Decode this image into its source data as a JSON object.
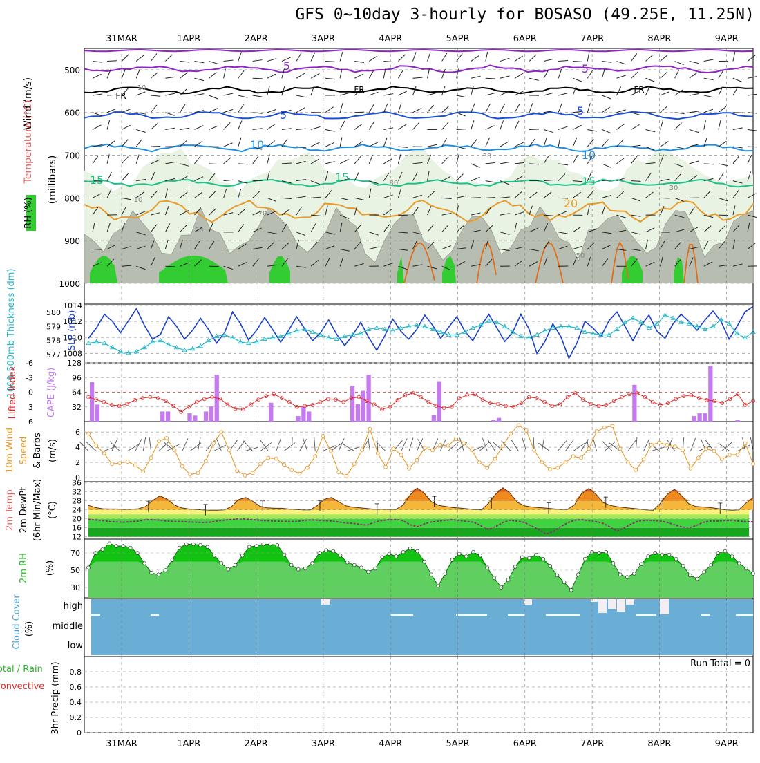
{
  "title": "GFS 0~10day 3-hourly for BOSASO (49.25E, 11.25N)",
  "date_labels": [
    "31MAR",
    "1APR",
    "2APR",
    "3APR",
    "4APR",
    "5APR",
    "6APR",
    "7APR",
    "8APR",
    "9APR"
  ],
  "colors": {
    "rh_green": "#33cc33",
    "rh_gray": "#b7bdb0",
    "rh_pale": "#e8f3e3",
    "slp": "#1a3fc7",
    "thickness": "#22b8c8",
    "lifted": "#e02828",
    "cape": "#c57af0",
    "wind10": "#e89a2a",
    "cloud": "#6aaed6",
    "rh2m": "#12c312"
  },
  "chart_data": [
    {
      "type": "contour",
      "panel": "upper-air",
      "ylabel": "(millibars)",
      "side_labels": [
        "Wind (m/s)",
        "Temperature (°C)",
        "RH (%)"
      ],
      "yticks": [
        500,
        600,
        700,
        800,
        900,
        1000
      ],
      "ylim": [
        1000,
        450
      ],
      "isotherm_labels": [
        "5",
        "5",
        "FR",
        "FR",
        "FR",
        "5",
        "5",
        "10",
        "10",
        "15",
        "15",
        "15",
        "20"
      ],
      "rh_labels": [
        "10",
        "30",
        "30",
        "30",
        "50",
        "50",
        "70",
        "10"
      ],
      "isotherms": [
        {
          "name": "-5",
          "color": "#8e24c2",
          "level": 498
        },
        {
          "name": "FR",
          "color": "#000000",
          "level": 548
        },
        {
          "name": "5",
          "color": "#1d4fd6",
          "level": 607
        },
        {
          "name": "10",
          "color": "#1d8fe0",
          "level": 683
        },
        {
          "name": "15",
          "color": "#1ec08a",
          "level": 765
        },
        {
          "name": "20",
          "color": "#e89a2a",
          "level": 830
        }
      ]
    },
    {
      "type": "line",
      "panel": "thickness-slp",
      "ylabel_left": "1000-500mb Thickness (dm)",
      "ylabel_right": "SLP (mb)",
      "yticks_left": [
        577,
        578,
        579,
        580
      ],
      "yticks_right": [
        1008,
        1010,
        1012,
        1014
      ],
      "series": [
        {
          "name": "SLP (mb)",
          "values": [
            1009.9,
            1011.2,
            1012.9,
            1012.0,
            1010.6,
            1012.1,
            1013.6,
            1011.5,
            1009.8,
            1010.4,
            1012.6,
            1011.4,
            1009.8,
            1010.9,
            1012.4,
            1011.0,
            1009.3,
            1010.6,
            1013.2,
            1011.7,
            1009.7,
            1010.9,
            1012.5,
            1011.0,
            1009.4,
            1010.9,
            1012.6,
            1011.1,
            1009.6,
            1010.6,
            1012.2,
            1010.4,
            1009.0,
            1010.3,
            1011.9,
            1010.0,
            1008.4,
            1010.2,
            1012.3,
            1010.8,
            1009.8,
            1011.0,
            1012.8,
            1011.5,
            1009.9,
            1011.3,
            1012.6,
            1010.8,
            1009.6,
            1011.4,
            1012.9,
            1011.2,
            1009.5,
            1010.7,
            1012.9,
            1011.1,
            1008.0,
            1009.5,
            1011.7,
            1010.1,
            1007.4,
            1009.3,
            1012.0,
            1011.2,
            1010.1,
            1012.1,
            1013.2,
            1011.4,
            1009.6,
            1011.5,
            1012.8,
            1010.8,
            1009.9,
            1011.7,
            1012.9,
            1012.0,
            1010.9,
            1012.2,
            1013.3,
            1012.0,
            1009.8,
            1011.4,
            1013.2,
            1013.9
          ]
        },
        {
          "name": "1000-500mb Thickness (dm)",
          "values": [
            577.8,
            577.9,
            577.8,
            577.5,
            577.2,
            577.1,
            577.2,
            577.5,
            577.9,
            578.0,
            577.7,
            577.5,
            577.3,
            577.4,
            577.6,
            578.0,
            578.3,
            578.4,
            578.2,
            577.9,
            577.8,
            577.9,
            578.1,
            578.2,
            578.3,
            578.5,
            578.7,
            578.8,
            578.6,
            578.4,
            578.2,
            578.1,
            578.3,
            578.4,
            578.5,
            578.8,
            578.9,
            578.8,
            578.7,
            578.9,
            579.0,
            579.1,
            579.0,
            578.8,
            578.6,
            578.4,
            578.4,
            578.6,
            578.9,
            579.1,
            579.4,
            579.3,
            579.0,
            578.6,
            578.3,
            578.2,
            578.4,
            578.7,
            578.9,
            579.0,
            579.0,
            578.9,
            578.6,
            578.5,
            578.4,
            578.4,
            578.8,
            579.3,
            579.6,
            579.3,
            578.9,
            579.2,
            579.8,
            579.6,
            579.3,
            579.2,
            579.0,
            578.8,
            579.0,
            579.5,
            579.2,
            578.5,
            578.2,
            578.6
          ]
        }
      ]
    },
    {
      "type": "bar",
      "panel": "cape-lifted-index",
      "ylabel_left": "Lifted Index",
      "ylabel_right": "CAPE (J/kg)",
      "yticks_left": [
        -6,
        -3,
        0,
        3,
        6
      ],
      "yticks_right": [
        32,
        64,
        96,
        128
      ],
      "series": [
        {
          "name": "CAPE (J/kg)",
          "values": [
            86,
            37,
            0,
            0,
            0,
            0,
            0,
            0,
            0,
            0,
            0,
            0,
            0,
            22,
            22,
            0,
            0,
            0,
            18,
            13,
            0,
            22,
            33,
            102,
            0,
            0,
            0,
            0,
            0,
            0,
            0,
            0,
            0,
            41,
            0,
            0,
            0,
            0,
            12,
            33,
            22,
            0,
            0,
            0,
            0,
            0,
            0,
            0,
            78,
            38,
            67,
            102,
            0,
            0,
            0,
            0,
            0,
            0,
            0,
            0,
            0,
            0,
            0,
            14,
            88,
            0,
            0,
            0,
            0,
            0,
            0,
            0,
            0,
            0,
            3,
            8,
            0,
            0,
            0,
            0,
            0,
            0,
            0,
            0,
            0,
            0,
            0,
            0,
            0,
            0,
            0,
            0,
            0,
            0,
            0,
            0,
            0,
            0,
            0,
            0,
            80,
            0,
            0,
            0,
            0,
            0,
            0,
            0,
            0,
            0,
            0,
            12,
            18,
            18,
            121,
            0,
            0,
            0,
            0,
            3,
            0,
            0
          ]
        },
        {
          "name": "Lifted Index",
          "values": [
            1.0,
            1.5,
            2.0,
            2.6,
            2.8,
            2.4,
            1.6,
            1.2,
            1.0,
            1.2,
            1.8,
            2.8,
            4.0,
            3.0,
            2.0,
            1.4,
            1.0,
            1.3,
            2.5,
            3.4,
            3.5,
            2.5,
            1.5,
            0.8,
            0.4,
            1.2,
            2.0,
            3.0,
            2.8,
            2.6,
            2.0,
            1.4,
            1.5,
            2.0,
            1.2,
            1.0,
            1.8,
            2.5,
            3.5,
            3.0,
            1.6,
            0.6,
            0.2,
            1.0,
            2.0,
            2.8,
            3.2,
            3.0,
            1.2,
            0.6,
            0.4,
            1.5,
            2.2,
            2.4,
            2.8,
            3.0,
            2.2,
            1.0,
            1.2,
            2.0,
            2.8,
            2.5,
            1.0,
            0.2,
            1.5,
            2.4,
            2.8,
            2.6,
            1.8,
            1.0,
            0.4,
            0.2,
            1.0,
            2.0,
            2.6,
            2.2,
            1.4,
            0.8,
            0.6,
            1.2,
            1.6,
            1.8,
            2.2,
            1.4,
            0.4,
            2.6,
            1.8
          ]
        }
      ]
    },
    {
      "type": "line",
      "panel": "wind10m",
      "ylabel": "10m Wind Speed & Barbs (m/s)",
      "yticks": [
        0,
        2,
        4,
        6
      ],
      "series": [
        {
          "name": "10m Wind Speed (m/s)",
          "values": [
            5.8,
            4.2,
            3.2,
            1.8,
            1.9,
            2.1,
            1.6,
            0.8,
            2.6,
            4.8,
            5.2,
            3.6,
            1.5,
            0.4,
            0.6,
            2.2,
            4.5,
            6.0,
            3.6,
            0.9,
            0.3,
            0.6,
            1.8,
            2.6,
            2.5,
            1.7,
            1.0,
            0.5,
            1.3,
            2.8,
            5.5,
            3.5,
            0.7,
            0.2,
            1.8,
            3.6,
            6.4,
            3.2,
            1.4,
            3.8,
            3.0,
            1.2,
            2.3,
            3.9,
            3.6,
            4.3,
            4.2,
            5.1,
            4.5,
            3.6,
            2.0,
            1.3,
            2.5,
            4.2,
            5.8,
            6.9,
            6.2,
            3.6,
            2.0,
            1.1,
            1.3,
            2.0,
            2.8,
            2.6,
            3.8,
            6.1,
            6.6,
            6.8,
            3.8,
            2.0,
            1.0,
            2.4,
            4.3,
            4.6,
            4.3,
            4.1,
            3.6,
            1.2,
            2.6,
            3.8,
            3.5,
            2.4,
            3.0,
            3.0,
            4.5,
            1.8
          ]
        }
      ]
    },
    {
      "type": "area",
      "panel": "temp2m",
      "ylabel": "2m Temp 2m DewPt (6hr Min/Max) (°C)",
      "yticks": [
        12,
        16,
        20,
        24,
        28,
        32,
        36
      ],
      "series": [
        {
          "name": "2m Temp (°C)",
          "values": [
            26.0,
            25.0,
            24.5,
            24.4,
            24.4,
            24.2,
            24.3,
            24.5,
            25.5,
            28.2,
            30.2,
            28.8,
            26.2,
            24.9,
            24.4,
            24.2,
            24.0,
            23.8,
            23.8,
            24.0,
            25.4,
            28.5,
            29.5,
            27.8,
            25.6,
            24.9,
            24.7,
            24.7,
            24.4,
            24.2,
            24.0,
            24.0,
            25.8,
            28.7,
            29.5,
            27.6,
            25.8,
            25.2,
            24.9,
            24.6,
            24.3,
            24.3,
            24.2,
            24.2,
            26.0,
            30.6,
            33.7,
            31.3,
            27.6,
            26.0,
            25.5,
            25.0,
            24.8,
            24.5,
            24.2,
            24.0,
            27.0,
            31.0,
            33.8,
            31.4,
            27.4,
            25.8,
            25.3,
            25.0,
            24.8,
            24.5,
            24.2,
            24.2,
            26.2,
            31.2,
            33.5,
            31.0,
            27.3,
            26.0,
            25.4,
            25.0,
            24.7,
            24.4,
            24.0,
            23.8,
            26.8,
            30.9,
            33.1,
            30.3,
            26.7,
            25.5,
            25.3,
            25.0,
            24.6,
            24.1,
            23.8,
            24.0,
            27.0,
            29.4
          ]
        },
        {
          "name": "2m DewPt (°C)",
          "values": [
            19.8,
            19.5,
            19.2,
            18.8,
            18.6,
            18.5,
            18.7,
            19.0,
            19.6,
            19.6,
            19.4,
            19.0,
            18.8,
            18.8,
            18.6,
            18.5,
            18.4,
            18.5,
            19.0,
            19.4,
            19.8,
            20.0,
            19.9,
            19.6,
            19.4,
            19.2,
            19.0,
            18.9,
            18.8,
            18.8,
            19.2,
            19.5,
            19.4,
            19.2,
            19.0,
            18.6,
            18.2,
            18.0,
            17.5,
            17.2,
            18.5,
            19.2,
            19.6,
            19.8,
            19.2,
            17.4,
            16.5,
            17.8,
            18.6,
            19.0,
            19.4,
            19.6,
            19.2,
            18.8,
            18.4,
            16.8,
            15.2,
            16.6,
            18.4,
            19.4,
            19.0,
            18.4,
            16.8,
            15.3,
            13.2,
            14.2,
            16.4,
            18.2,
            19.4,
            19.6,
            19.2,
            18.8,
            18.0,
            16.3,
            14.6,
            16.0,
            17.8,
            19.0,
            19.4,
            19.3,
            19.0,
            18.4,
            17.4,
            16.4,
            16.0,
            17.0,
            18.4,
            19.0,
            19.0,
            19.2,
            19.4,
            19.0,
            18.8,
            18.6
          ]
        }
      ]
    },
    {
      "type": "area",
      "panel": "rh2m",
      "ylabel": "2m RH (%)",
      "yticks": [
        30,
        50,
        70
      ],
      "series": [
        {
          "name": "2m RH (%)",
          "values": [
            53,
            70,
            74,
            81,
            78,
            78,
            76,
            70,
            58,
            47,
            45,
            50,
            62,
            76,
            80,
            80,
            79,
            77,
            67,
            58,
            51,
            56,
            67,
            77,
            78,
            80,
            80,
            79,
            68,
            56,
            51,
            52,
            58,
            70,
            73,
            72,
            67,
            59,
            56,
            53,
            48,
            52,
            65,
            69,
            66,
            71,
            75,
            72,
            60,
            45,
            32,
            46,
            62,
            69,
            66,
            71,
            67,
            53,
            41,
            30,
            39,
            54,
            65,
            64,
            68,
            63,
            55,
            44,
            36,
            27,
            45,
            63,
            71,
            70,
            71,
            58,
            45,
            42,
            46,
            57,
            66,
            70,
            68,
            68,
            63,
            55,
            44,
            40,
            48,
            56,
            70,
            72,
            66,
            58,
            52,
            46
          ]
        }
      ]
    },
    {
      "type": "bar",
      "panel": "cloud-cover",
      "ylabel": "Cloud Cover (%)",
      "levels": [
        "high",
        "middle",
        "low"
      ]
    },
    {
      "type": "bar",
      "panel": "precip",
      "ylabel_left": "3hr Precip (mm)",
      "legend": [
        "Total / Rain",
        "Convective"
      ],
      "yticks": [
        0,
        0.2,
        0.4,
        0.6,
        0.8
      ],
      "ylim": [
        0,
        1
      ],
      "annotation": "Run Total = 0",
      "series": [
        {
          "name": "Total / Rain",
          "values": []
        }
      ]
    }
  ]
}
